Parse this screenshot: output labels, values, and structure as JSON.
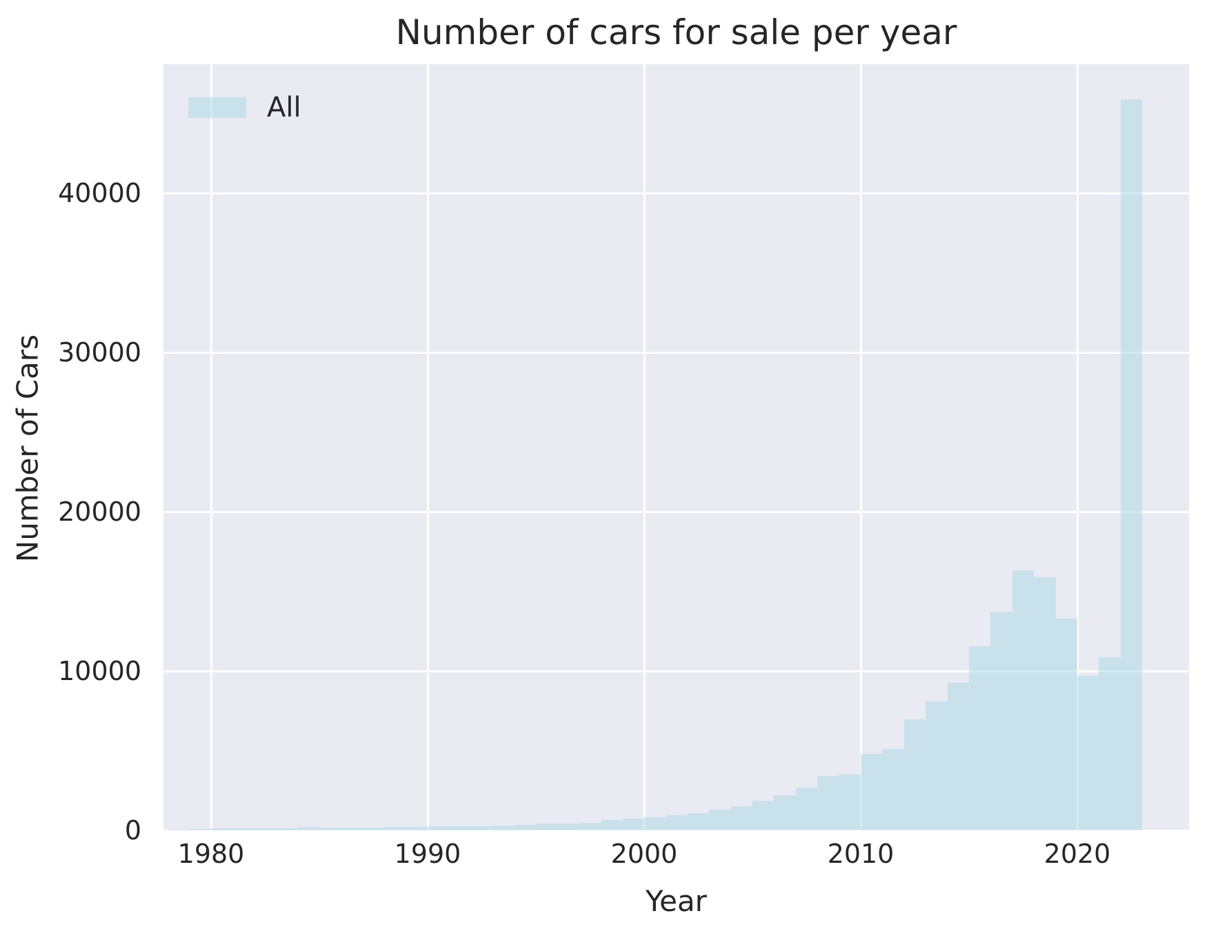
{
  "title": "Number of cars for sale per year",
  "legend": {
    "label": "All"
  },
  "axes": {
    "x_label": "Year",
    "y_label": "Number of Cars",
    "x_ticks": [
      1980,
      1990,
      2000,
      2010,
      2020
    ],
    "y_ticks": [
      0,
      10000,
      20000,
      30000,
      40000
    ]
  },
  "colors": {
    "plot_bg": "#eaeaf2",
    "grid": "#ffffff",
    "bar": "rgba(173,216,230,0.55)",
    "text": "#262626"
  },
  "chart_data": {
    "type": "bar",
    "title": "Number of cars for sale per year",
    "xlabel": "Year",
    "ylabel": "Number of Cars",
    "legend_entries": [
      "All"
    ],
    "legend_position": "upper left",
    "grid": true,
    "bin_width_years": 1,
    "xlim": [
      1977.8,
      2025.2
    ],
    "ylim": [
      0,
      48100
    ],
    "categories": [
      1978,
      1979,
      1980,
      1981,
      1982,
      1983,
      1984,
      1985,
      1986,
      1987,
      1988,
      1989,
      1990,
      1991,
      1992,
      1993,
      1994,
      1995,
      1996,
      1997,
      1998,
      1999,
      2000,
      2001,
      2002,
      2003,
      2004,
      2005,
      2006,
      2007,
      2008,
      2009,
      2010,
      2011,
      2012,
      2013,
      2014,
      2015,
      2016,
      2017,
      2018,
      2019,
      2020,
      2021,
      2022
    ],
    "values": [
      50,
      90,
      110,
      120,
      130,
      145,
      195,
      160,
      175,
      185,
      200,
      215,
      240,
      260,
      275,
      320,
      335,
      430,
      415,
      480,
      650,
      745,
      820,
      950,
      1080,
      1300,
      1520,
      1860,
      2210,
      2700,
      3430,
      3520,
      4800,
      5120,
      6950,
      8100,
      9250,
      11560,
      13730,
      16300,
      15900,
      13300,
      9700,
      10870,
      45900
    ]
  }
}
